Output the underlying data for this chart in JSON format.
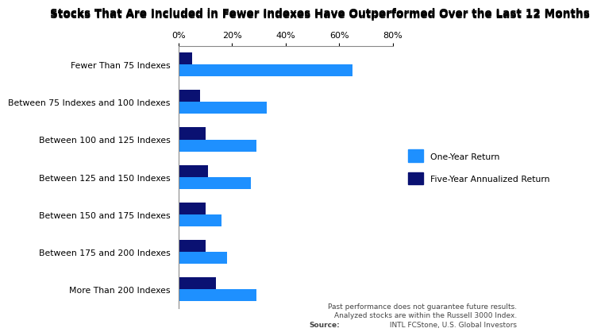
{
  "title": "Stocks That Are Included in Fewer Indexes Have Outperformed Over the Last 12 Months",
  "categories": [
    "Fewer Than 75 Indexes",
    "Between 75 Indexes and 100 Indexes",
    "Between 100 and 125 Indexes",
    "Between 125 and 150 Indexes",
    "Between 150 and 175 Indexes",
    "Between 175 and 200 Indexes",
    "More Than 200 Indexes"
  ],
  "one_year_return": [
    65,
    33,
    29,
    27,
    16,
    18,
    29
  ],
  "five_year_return": [
    5,
    8,
    10,
    11,
    10,
    10,
    14
  ],
  "color_one_year": "#1E90FF",
  "color_five_year": "#0A1172",
  "xlim": [
    0,
    80
  ],
  "xticks": [
    0,
    20,
    40,
    60,
    80
  ],
  "xtick_labels": [
    "0%",
    "20%",
    "40%",
    "60%",
    "80%"
  ],
  "legend_one_year": "One-Year Return",
  "legend_five_year": "Five-Year Annualized Return",
  "footnote_line1": "Past performance does not guarantee future results.",
  "footnote_line2": "Analyzed stocks are within the Russell 3000 Index.",
  "footnote_source_bold": "Source:",
  "footnote_source_rest": " INTL FCStone, U.S. Global Investors",
  "title_color": "#000000",
  "bar_height": 0.32,
  "background_color": "#ffffff",
  "title_fontsize": 9.8,
  "tick_fontsize": 8.0,
  "ylabel_fontsize": 7.8,
  "legend_fontsize": 7.8,
  "footnote_fontsize": 6.5
}
